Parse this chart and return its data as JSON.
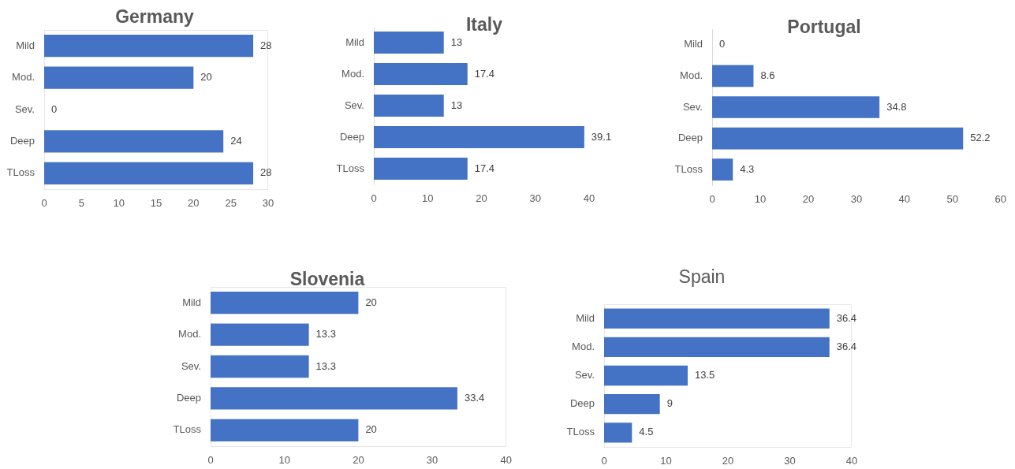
{
  "chart_data": [
    {
      "type": "bar",
      "title": "Germany",
      "orientation": "horizontal",
      "categories": [
        "Mild",
        "Mod.",
        "Sev.",
        "Deep",
        "TLoss"
      ],
      "values": [
        28,
        20,
        0,
        24,
        28
      ],
      "color": "#4472c4",
      "xlim": [
        0,
        30
      ],
      "xticks": [
        0,
        5,
        10,
        15,
        20,
        25,
        30
      ],
      "data_labels": true
    },
    {
      "type": "bar",
      "title": "Italy",
      "orientation": "horizontal",
      "categories": [
        "Mild",
        "Mod.",
        "Sev.",
        "Deep",
        "TLoss"
      ],
      "values": [
        13,
        17.4,
        13,
        39.1,
        17.4
      ],
      "color": "#4472c4",
      "xlim": [
        0,
        40
      ],
      "xticks": [
        0,
        10,
        20,
        30,
        40
      ],
      "data_labels": true
    },
    {
      "type": "bar",
      "title": "Portugal",
      "orientation": "horizontal",
      "categories": [
        "Mild",
        "Mod.",
        "Sev.",
        "Deep",
        "TLoss"
      ],
      "values": [
        0,
        8.6,
        34.8,
        52.2,
        4.3
      ],
      "color": "#4472c4",
      "xlim": [
        0,
        60
      ],
      "xticks": [
        0,
        10,
        20,
        30,
        40,
        50,
        60
      ],
      "data_labels": true
    },
    {
      "type": "bar",
      "title": "Slovenia",
      "orientation": "horizontal",
      "categories": [
        "Mild",
        "Mod.",
        "Sev.",
        "Deep",
        "TLoss"
      ],
      "values": [
        20,
        13.3,
        13.3,
        33.4,
        20
      ],
      "color": "#4472c4",
      "xlim": [
        0,
        40
      ],
      "xticks": [
        0,
        10,
        20,
        30,
        40
      ],
      "data_labels": true
    },
    {
      "type": "bar",
      "title": "Spain",
      "orientation": "horizontal",
      "categories": [
        "Mild",
        "Mod.",
        "Sev.",
        "Deep",
        "TLoss"
      ],
      "values": [
        36.4,
        36.4,
        13.5,
        9,
        4.5
      ],
      "color": "#4472c4",
      "xlim": [
        0,
        40
      ],
      "xticks": [
        0,
        10,
        20,
        30,
        40
      ],
      "data_labels": true
    }
  ]
}
